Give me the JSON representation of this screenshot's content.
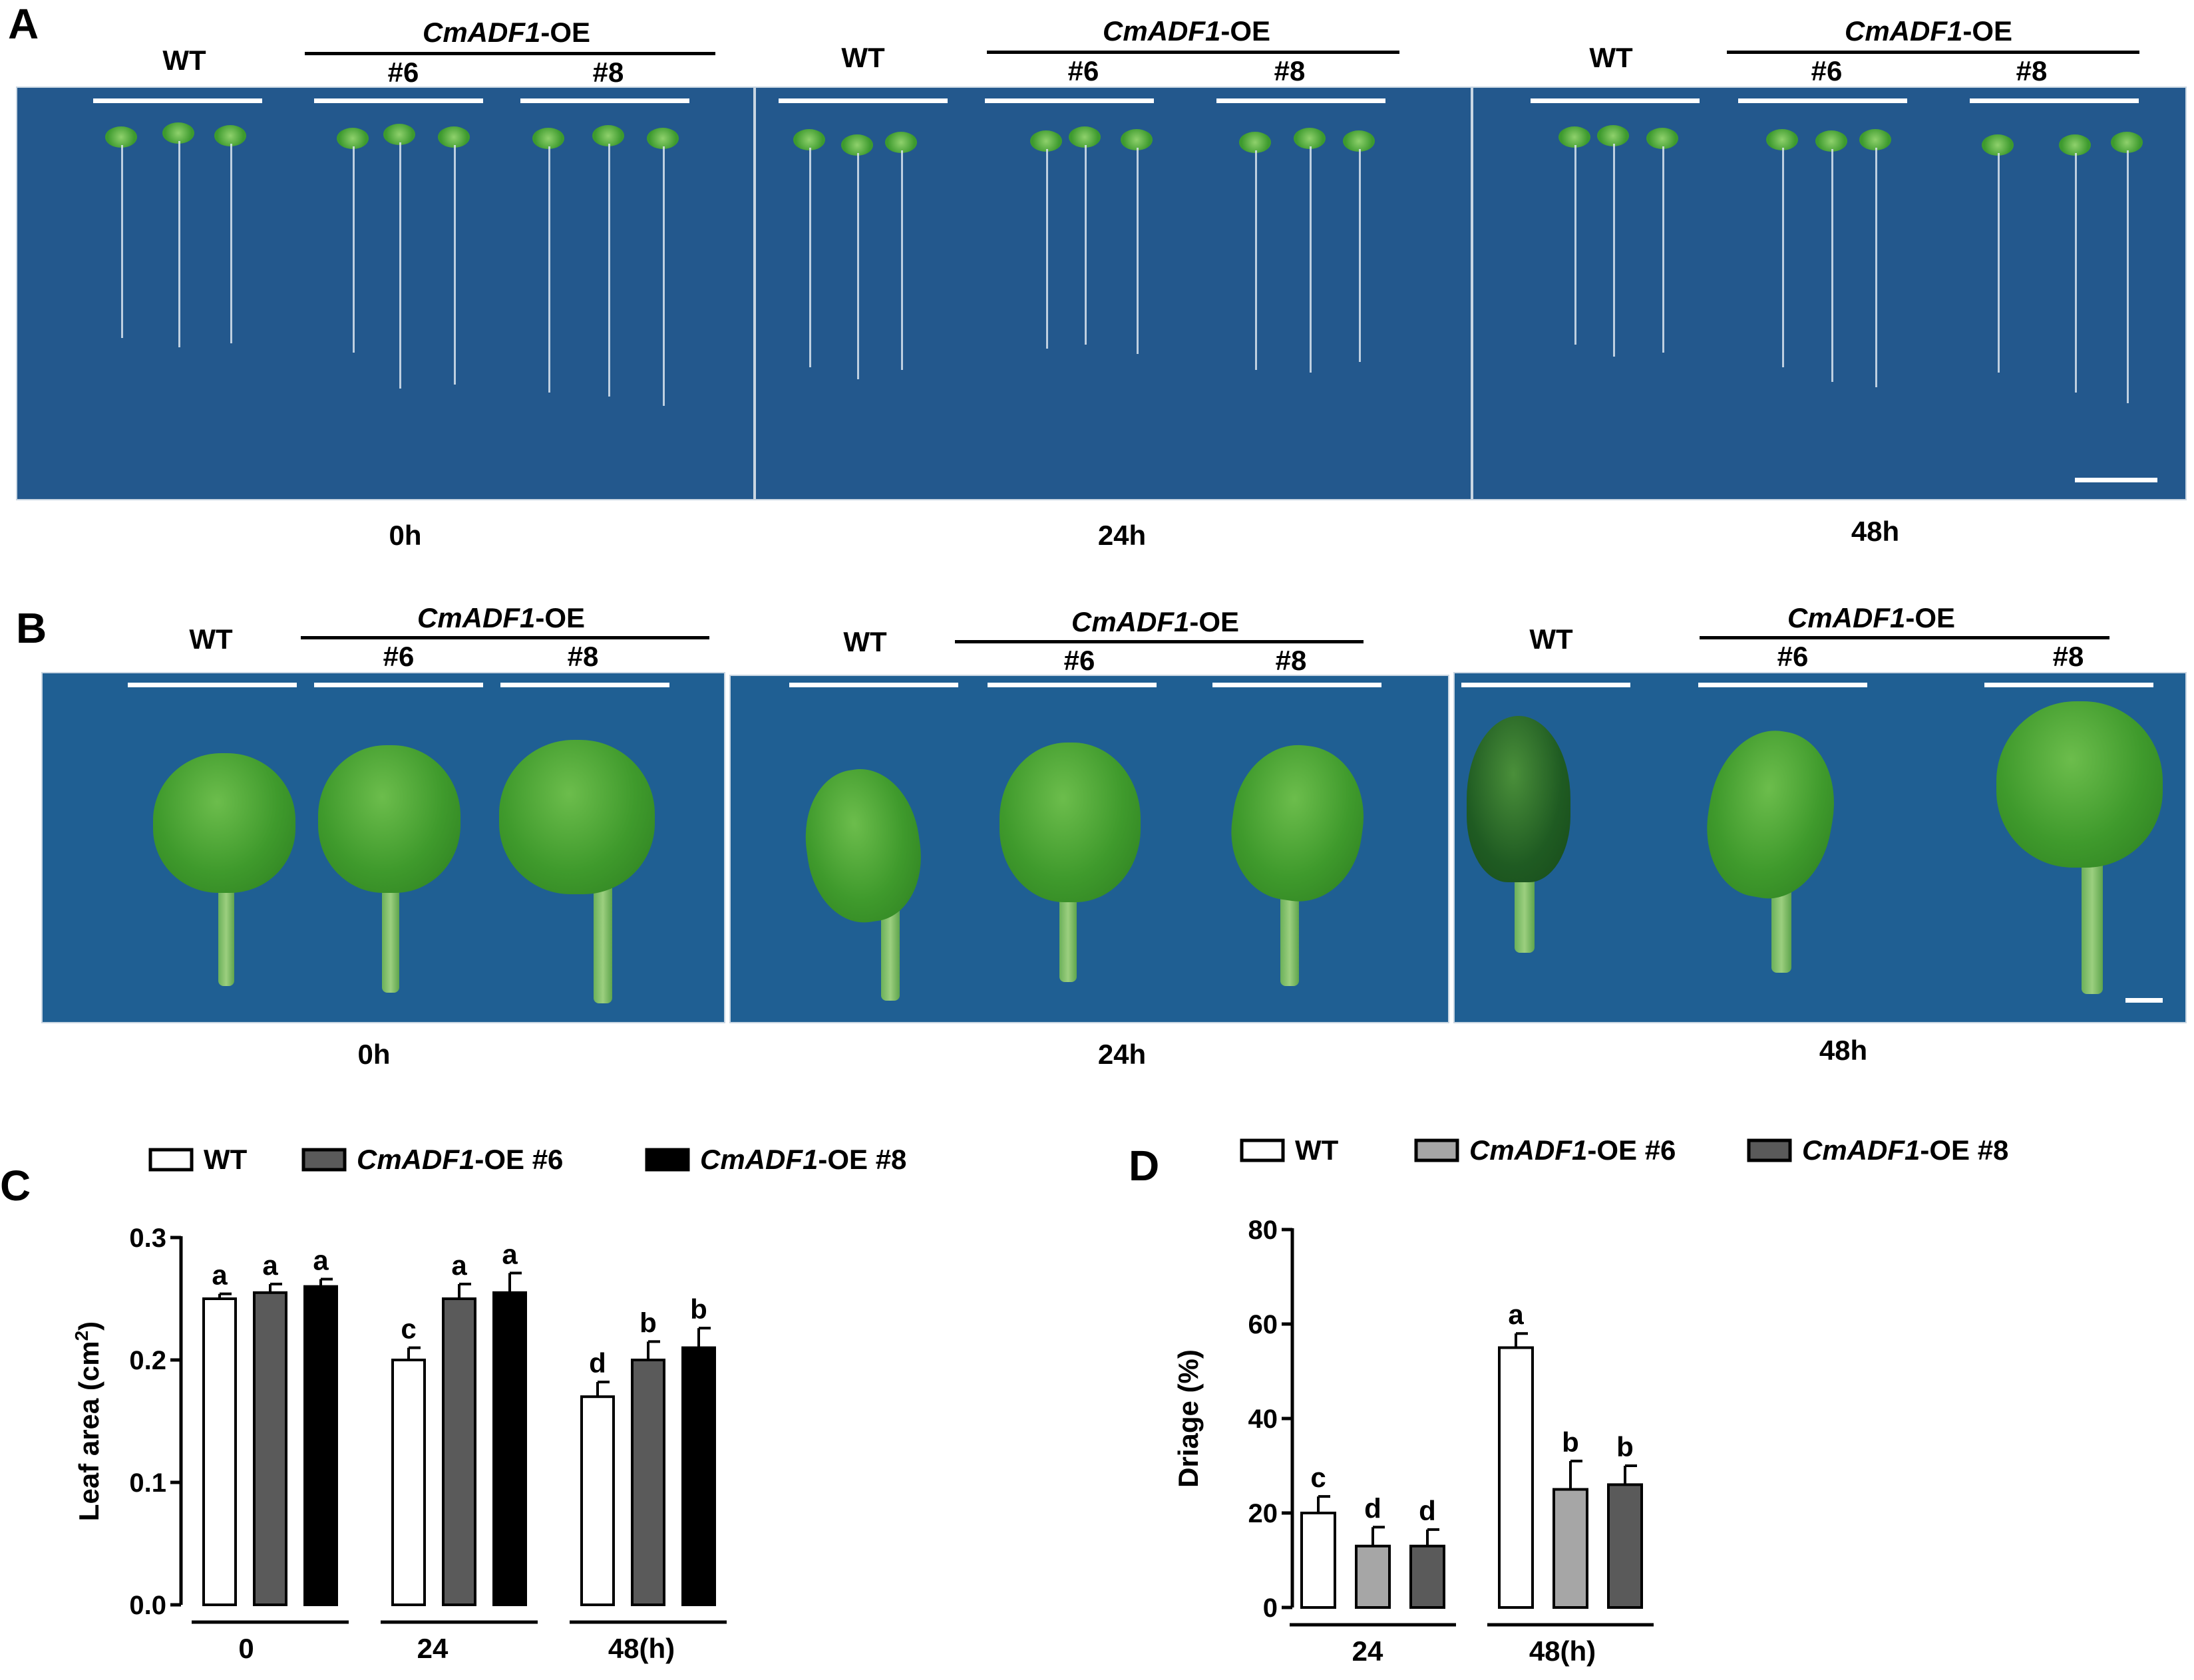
{
  "panels": {
    "A": {
      "label": "A",
      "groups": [
        {
          "wt": "WT",
          "oe_gene": "CmADF1",
          "oe_suffix": "-OE",
          "line1": "#6",
          "line2": "#8",
          "time": "0h"
        },
        {
          "wt": "WT",
          "oe_gene": "CmADF1",
          "oe_suffix": "-OE",
          "line1": "#6",
          "line2": "#8",
          "time": "24h"
        },
        {
          "wt": "WT",
          "oe_gene": "CmADF1",
          "oe_suffix": "-OE",
          "line1": "#6",
          "line2": "#8",
          "time": "48h"
        }
      ]
    },
    "B": {
      "label": "B",
      "groups": [
        {
          "wt": "WT",
          "oe_gene": "CmADF1",
          "oe_suffix": "-OE",
          "line1": "#6",
          "line2": "#8",
          "time": "0h"
        },
        {
          "wt": "WT",
          "oe_gene": "CmADF1",
          "oe_suffix": "-OE",
          "line1": "#6",
          "line2": "#8",
          "time": "24h"
        },
        {
          "wt": "WT",
          "oe_gene": "CmADF1",
          "oe_suffix": "-OE",
          "line1": "#6",
          "line2": "#8",
          "time": "48h"
        }
      ]
    },
    "C": {
      "label": "C"
    },
    "D": {
      "label": "D"
    }
  },
  "colors": {
    "plate_blue": "#23588d",
    "wt_fill": "#ffffff",
    "oe6_fill_C": "#5a5a5a",
    "oe8_fill_C": "#000000",
    "oe6_fill_D": "#a6a6a6",
    "oe8_fill_D": "#5a5a5a"
  },
  "chart_data": [
    {
      "type": "bar",
      "panel": "C",
      "ylabel": "Leaf area (cm²)",
      "ylabel_main": "Leaf area (cm",
      "ylabel_sup": "2",
      "ylabel_end": ")",
      "ylim": [
        0.0,
        0.3
      ],
      "yticks": [
        "0.0",
        "0.1",
        "0.2",
        "0.3"
      ],
      "categories": [
        "0",
        "24",
        "48(h)"
      ],
      "legend": [
        {
          "gene": "",
          "text": "WT"
        },
        {
          "gene": "CmADF1",
          "text": "-OE #6"
        },
        {
          "gene": "CmADF1",
          "text": "-OE #8"
        }
      ],
      "series": [
        {
          "name": "WT",
          "values": [
            0.25,
            0.2,
            0.17
          ],
          "errors": [
            0.004,
            0.01,
            0.012
          ],
          "letters": [
            "a",
            "c",
            "d"
          ]
        },
        {
          "name": "CmADF1-OE #6",
          "values": [
            0.255,
            0.25,
            0.2
          ],
          "errors": [
            0.007,
            0.012,
            0.015
          ],
          "letters": [
            "a",
            "a",
            "b"
          ]
        },
        {
          "name": "CmADF1-OE #8",
          "values": [
            0.26,
            0.255,
            0.21
          ],
          "errors": [
            0.006,
            0.016,
            0.016
          ],
          "letters": [
            "a",
            "a",
            "b"
          ]
        }
      ]
    },
    {
      "type": "bar",
      "panel": "D",
      "ylabel": "Driage (%)",
      "ylim": [
        0,
        80
      ],
      "yticks": [
        "0",
        "20",
        "40",
        "60",
        "80"
      ],
      "categories": [
        "24",
        "48(h)"
      ],
      "legend": [
        {
          "gene": "",
          "text": "WT"
        },
        {
          "gene": "CmADF1",
          "text": "-OE #6"
        },
        {
          "gene": "CmADF1",
          "text": "-OE #8"
        }
      ],
      "series": [
        {
          "name": "WT",
          "values": [
            20,
            55
          ],
          "errors": [
            3.5,
            3
          ],
          "letters": [
            "c",
            "a"
          ]
        },
        {
          "name": "CmADF1-OE #6",
          "values": [
            13,
            25
          ],
          "errors": [
            4,
            6
          ],
          "letters": [
            "d",
            "b"
          ]
        },
        {
          "name": "CmADF1-OE #8",
          "values": [
            13,
            26
          ],
          "errors": [
            3.5,
            4
          ],
          "letters": [
            "d",
            "b"
          ]
        }
      ]
    }
  ]
}
